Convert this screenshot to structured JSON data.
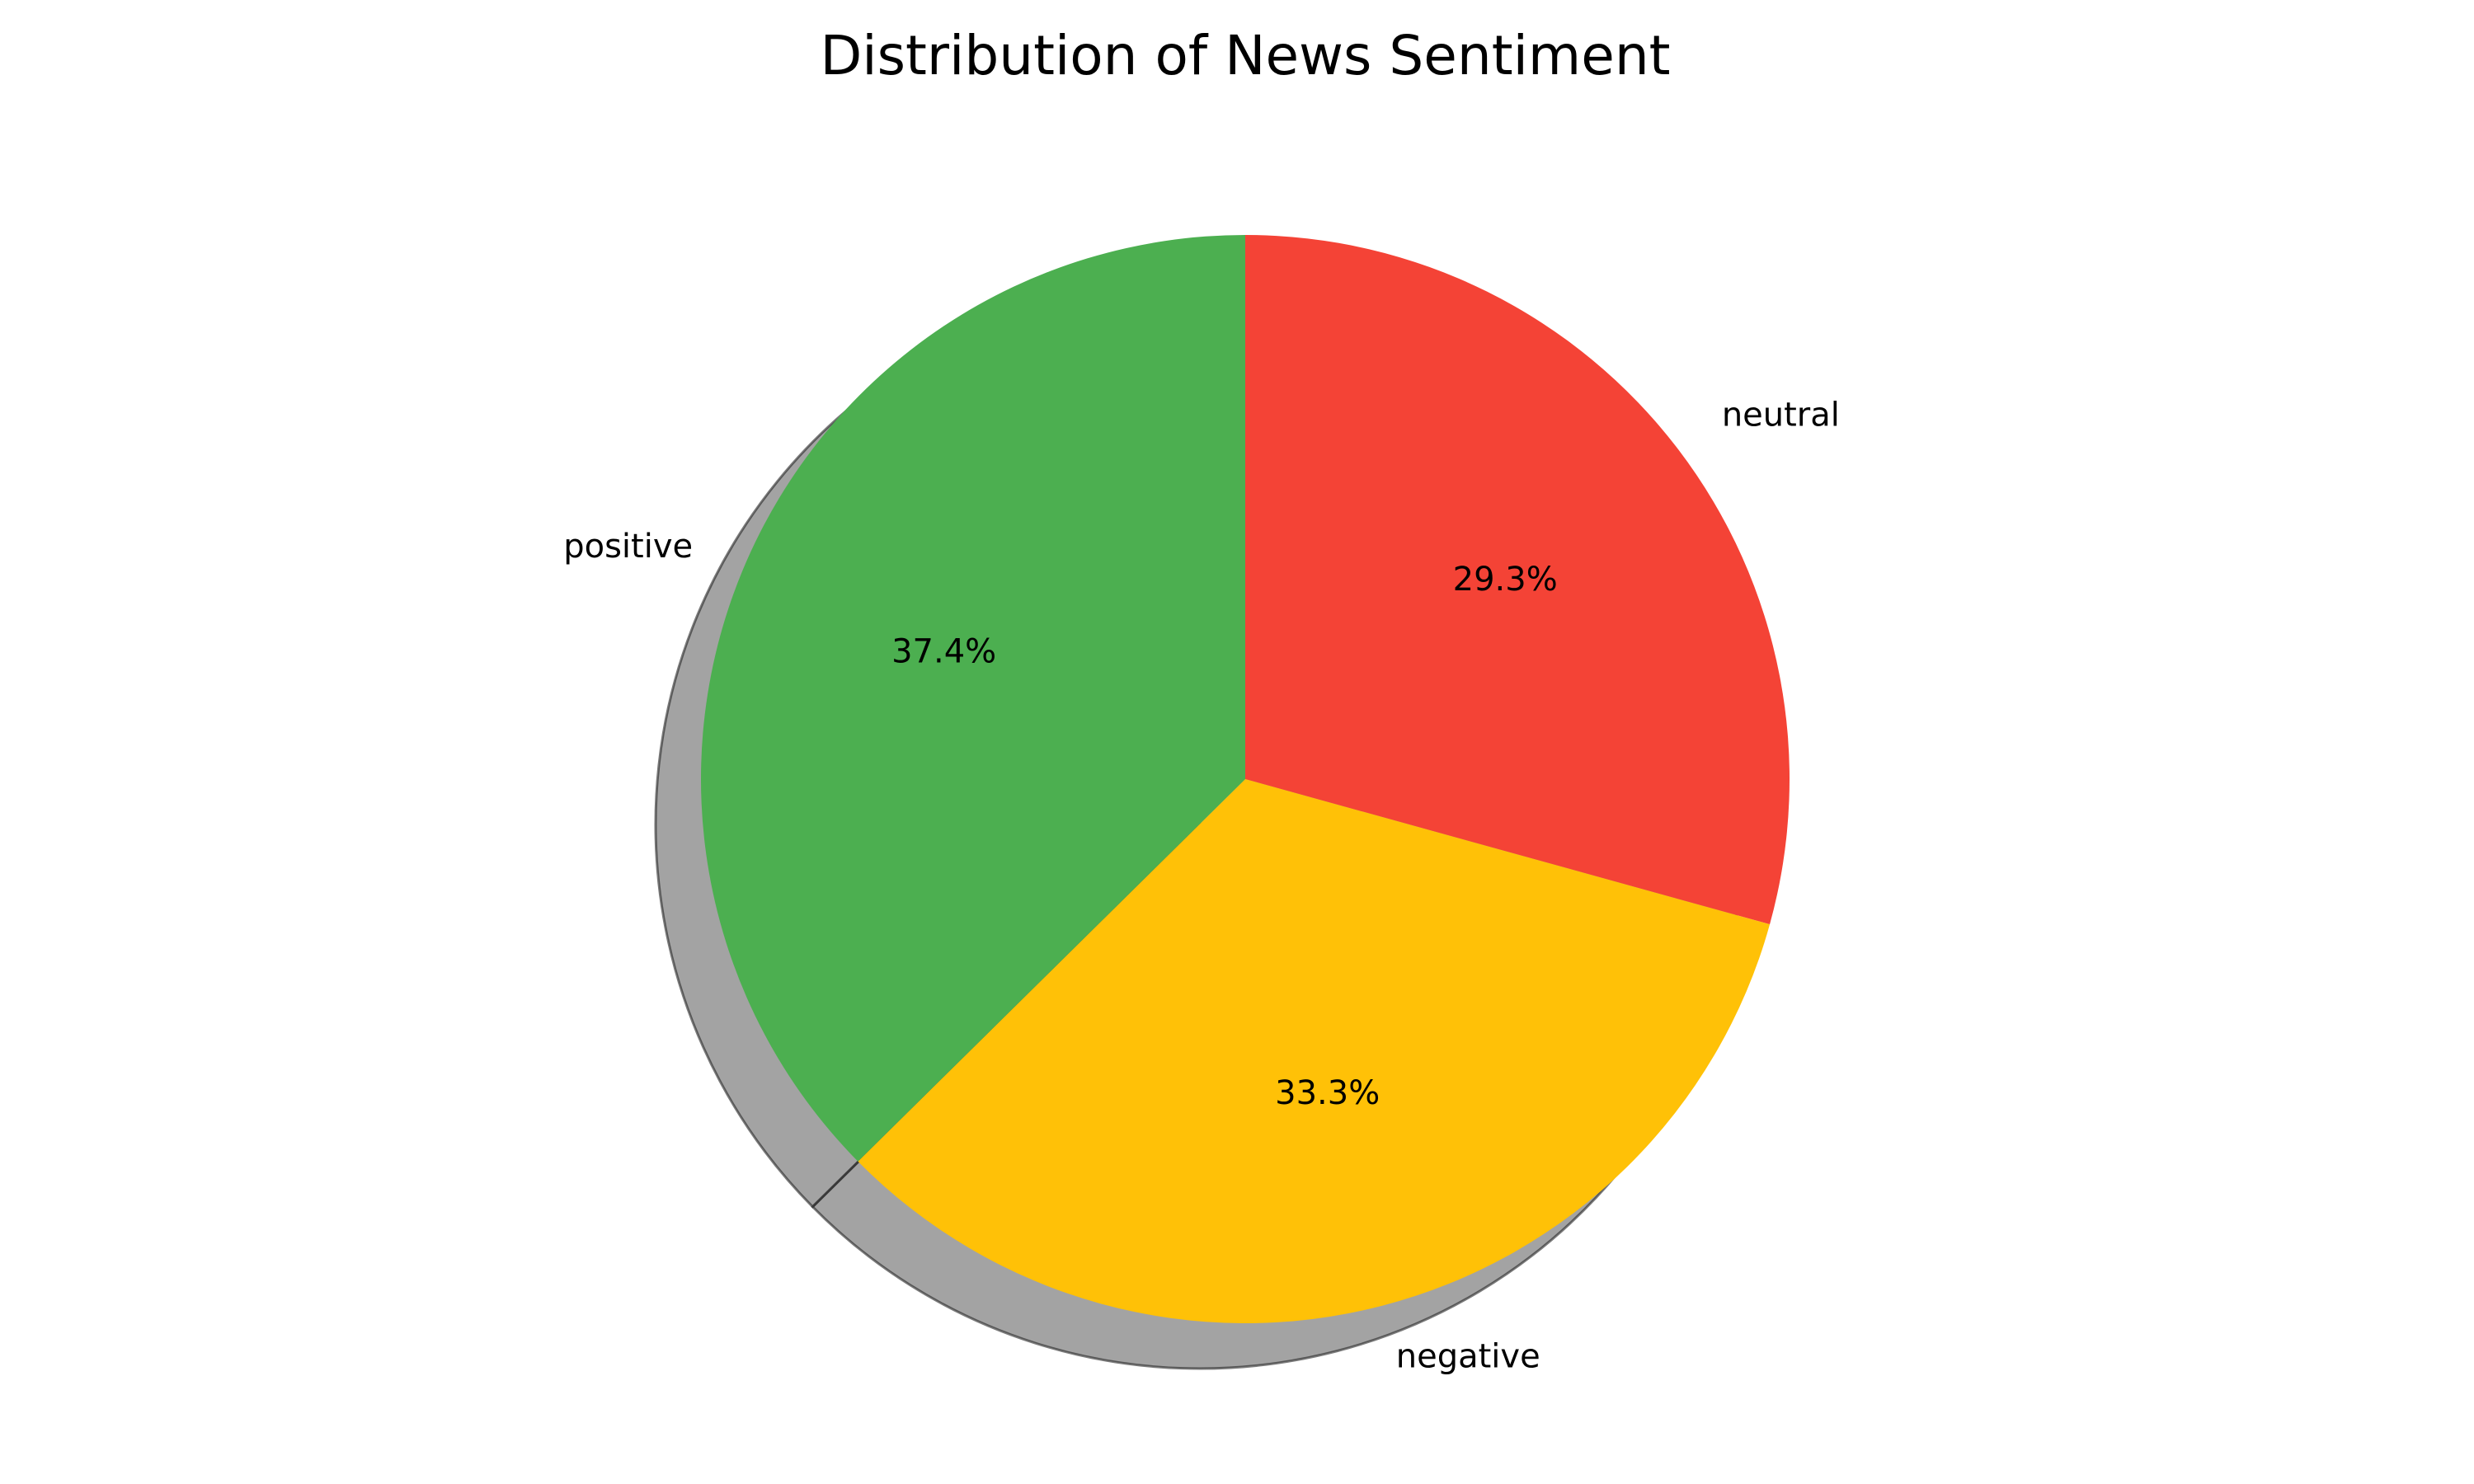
{
  "chart_data": {
    "type": "pie",
    "title": "Distribution of News Sentiment",
    "slices": [
      {
        "label": "neutral",
        "value": 29.3,
        "pct_label": "29.3%",
        "color": "#f44336"
      },
      {
        "label": "negative",
        "value": 33.3,
        "pct_label": "33.3%",
        "color": "#ffc107"
      },
      {
        "label": "positive",
        "value": 37.4,
        "pct_label": "37.4%",
        "color": "#4caf50"
      }
    ],
    "start_angle": "top (12 o'clock)",
    "direction": "clockwise",
    "shadow": true,
    "shadow_color": "#585858",
    "legend": "none"
  }
}
